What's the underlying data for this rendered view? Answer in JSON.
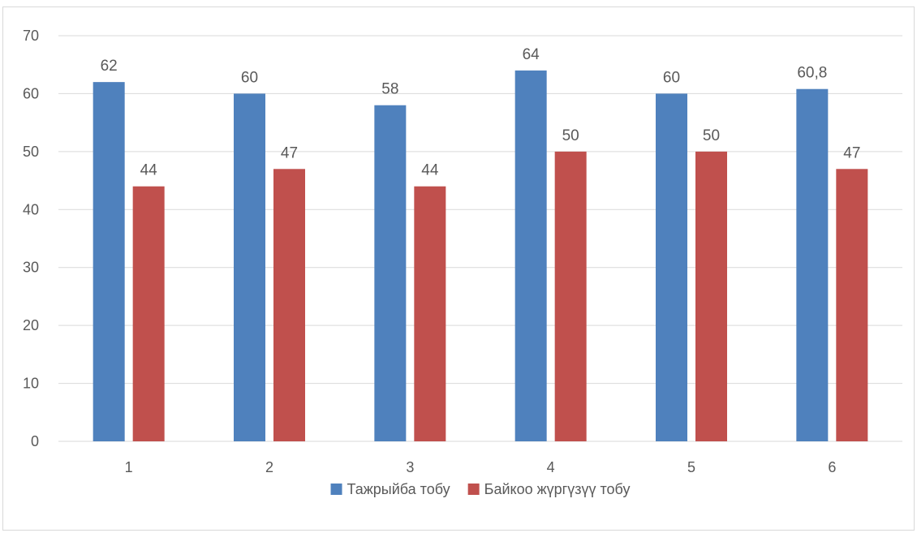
{
  "chart_data": {
    "type": "bar",
    "categories": [
      "1",
      "2",
      "3",
      "4",
      "5",
      "6"
    ],
    "series": [
      {
        "name": "Тажрыйба тобу",
        "values": [
          62,
          60,
          58,
          64,
          60,
          60.8
        ],
        "labels": [
          "62",
          "60",
          "58",
          "64",
          "60",
          "60,8"
        ],
        "color": "#4f81bd"
      },
      {
        "name": "Байкоо жүргүзүү тобу",
        "values": [
          44,
          47,
          44,
          50,
          50,
          47
        ],
        "labels": [
          "44",
          "47",
          "44",
          "50",
          "50",
          "47"
        ],
        "color": "#c0504d"
      }
    ],
    "ylim": [
      0,
      70
    ],
    "yticks": [
      0,
      10,
      20,
      30,
      40,
      50,
      60,
      70
    ],
    "grid": true,
    "legend_position": "bottom",
    "gridline_color": "#d9d9d9",
    "text_color": "#595959"
  }
}
